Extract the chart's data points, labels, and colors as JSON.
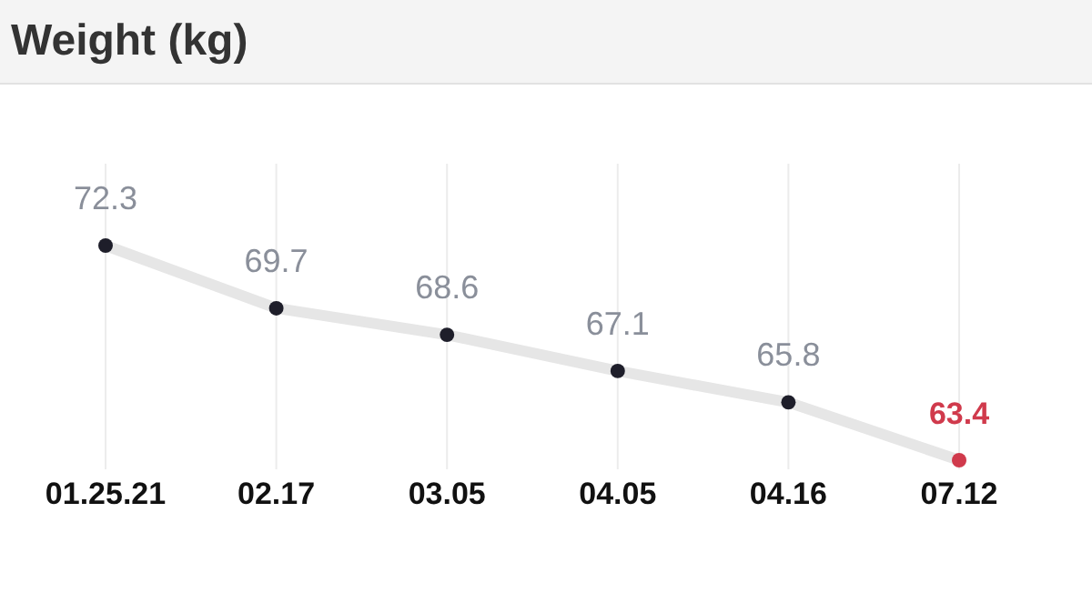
{
  "chart_data": {
    "type": "line",
    "title": "Weight (kg)",
    "categories": [
      "01.25.21",
      "02.17",
      "03.05",
      "04.05",
      "04.16",
      "07.12"
    ],
    "series": [
      {
        "color": "#e6e6e6",
        "values": [
          72.3,
          69.7,
          68.6,
          67.1,
          65.8,
          63.4
        ],
        "colors": [
          "#1e1e2a",
          "#1e1e2a",
          "#1e1e2a",
          "#1e1e2a",
          "#1e1e2a",
          "#d03a4c"
        ]
      }
    ],
    "data_labels": true,
    "grid": "x",
    "marker": "circle"
  }
}
